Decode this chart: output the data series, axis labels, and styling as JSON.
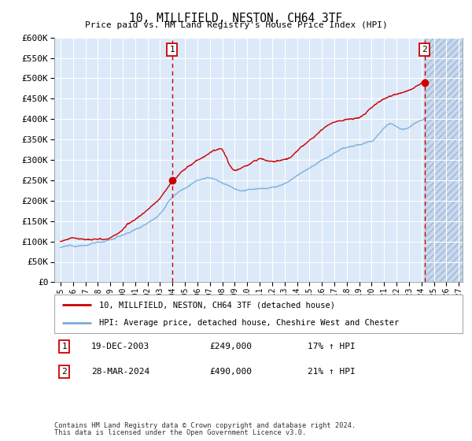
{
  "title": "10, MILLFIELD, NESTON, CH64 3TF",
  "subtitle": "Price paid vs. HM Land Registry's House Price Index (HPI)",
  "legend_line1": "10, MILLFIELD, NESTON, CH64 3TF (detached house)",
  "legend_line2": "HPI: Average price, detached house, Cheshire West and Chester",
  "footnote1": "Contains HM Land Registry data © Crown copyright and database right 2024.",
  "footnote2": "This data is licensed under the Open Government Licence v3.0.",
  "sale1_date": "19-DEC-2003",
  "sale1_price": "£249,000",
  "sale1_hpi": "17% ↑ HPI",
  "sale2_date": "28-MAR-2024",
  "sale2_price": "£490,000",
  "sale2_hpi": "21% ↑ HPI",
  "sale1_year": 2003.97,
  "sale1_value": 249000,
  "sale2_year": 2024.24,
  "sale2_value": 490000,
  "ylim": [
    0,
    600000
  ],
  "yticks": [
    0,
    50000,
    100000,
    150000,
    200000,
    250000,
    300000,
    350000,
    400000,
    450000,
    500000,
    550000,
    600000
  ],
  "xlim_start": 1994.5,
  "xlim_end": 2027.3,
  "xticks": [
    1995,
    1996,
    1997,
    1998,
    1999,
    2000,
    2001,
    2002,
    2003,
    2004,
    2005,
    2006,
    2007,
    2008,
    2009,
    2010,
    2011,
    2012,
    2013,
    2014,
    2015,
    2016,
    2017,
    2018,
    2019,
    2020,
    2021,
    2022,
    2023,
    2024,
    2025,
    2026,
    2027
  ],
  "background_color": "#dce9f8",
  "hatch_start": 2024.24,
  "hatch_end": 2027.3,
  "red_color": "#cc0000",
  "blue_color": "#7aadda",
  "vline_color": "#cc0000",
  "grid_color": "#ffffff"
}
